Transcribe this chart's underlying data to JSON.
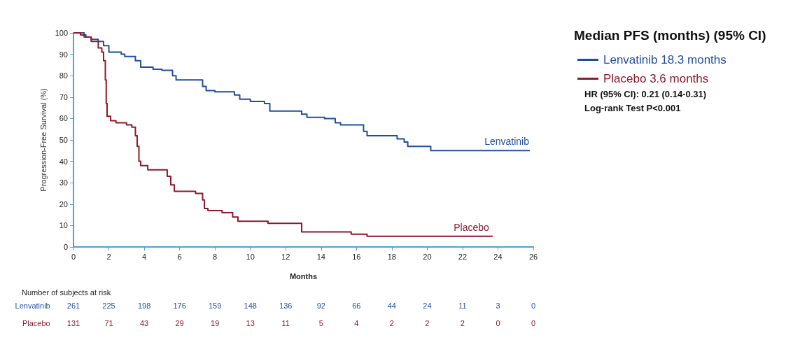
{
  "chart_data": [
    {
      "type": "step",
      "legend_title": "Median PFS (months) (95% CI)",
      "xlabel": "Months",
      "ylabel": "Progression-Free Survival (%)",
      "xlim": [
        0,
        26
      ],
      "xticks": [
        0,
        2,
        4,
        6,
        8,
        10,
        12,
        14,
        16,
        18,
        20,
        22,
        24,
        26
      ],
      "ylim": [
        0,
        100
      ],
      "yticks": [
        0,
        10,
        20,
        30,
        40,
        50,
        60,
        70,
        80,
        90,
        100
      ],
      "grid": false,
      "legend": "right",
      "marker": "none",
      "line_style": "solid",
      "series": [
        {
          "name": "Lenvatinib 18.3 months",
          "color": "#1f4e9f",
          "x": [
            0,
            0.6,
            1.0,
            1.4,
            1.7,
            2.0,
            2.7,
            2.9,
            3.5,
            3.8,
            4.5,
            5.0,
            5.6,
            5.8,
            7.3,
            7.5,
            8.0,
            9.1,
            9.4,
            10.0,
            10.8,
            11.1,
            12.9,
            13.2,
            14.2,
            14.8,
            15.1,
            16.4,
            16.6,
            18.3,
            18.7,
            18.9,
            20.2,
            25.8
          ],
          "values": [
            100,
            98,
            97,
            96,
            94,
            91,
            90,
            89,
            87,
            84,
            83,
            82.5,
            80,
            78,
            75,
            73,
            72.5,
            71,
            69,
            68,
            67,
            63.5,
            62,
            60.5,
            60,
            58,
            57,
            54,
            52,
            50.5,
            49,
            47,
            45,
            45
          ]
        },
        {
          "name": "Placebo 3.6 months",
          "color": "#8b1a2b",
          "x": [
            0,
            0.4,
            0.7,
            1.0,
            1.4,
            1.6,
            1.7,
            1.8,
            1.85,
            1.9,
            2.1,
            2.4,
            3.0,
            3.3,
            3.5,
            3.6,
            3.7,
            3.8,
            4.2,
            5.3,
            5.5,
            5.7,
            6.9,
            7.3,
            7.4,
            7.6,
            8.4,
            9.0,
            9.3,
            11.0,
            12.9,
            15.7,
            16.6,
            23.7
          ],
          "values": [
            100,
            99,
            98,
            96,
            93,
            91,
            87,
            78,
            67,
            61,
            59,
            58,
            57,
            56,
            52,
            47,
            40,
            38,
            36,
            33,
            29,
            26,
            25,
            22,
            18,
            17,
            16,
            14,
            12,
            11,
            7,
            6,
            5,
            5
          ]
        }
      ],
      "annotations": [
        {
          "text": "Lenvatinib",
          "x": 24.5,
          "y": 47
        },
        {
          "text": "Placebo",
          "x": 22.5,
          "y": 7
        },
        "HR (95% CI): 0.21 (0.14-0.31)",
        "Log-rank Test P<0.001"
      ]
    },
    {
      "type": "heatmap",
      "title": "Number of subjects at risk",
      "data_labels": true,
      "categories": [
        null,
        null,
        null,
        null,
        null,
        null,
        null,
        null,
        null,
        null,
        null,
        null,
        null,
        null
      ],
      "y_categories": [
        "Lenvatinib",
        "Placebo"
      ],
      "cells": [
        [
          261,
          225,
          198,
          176,
          159,
          148,
          136,
          92,
          66,
          44,
          24,
          11,
          3,
          0
        ],
        [
          131,
          71,
          43,
          29,
          19,
          13,
          11,
          5,
          4,
          2,
          2,
          2,
          0,
          0
        ]
      ]
    }
  ]
}
